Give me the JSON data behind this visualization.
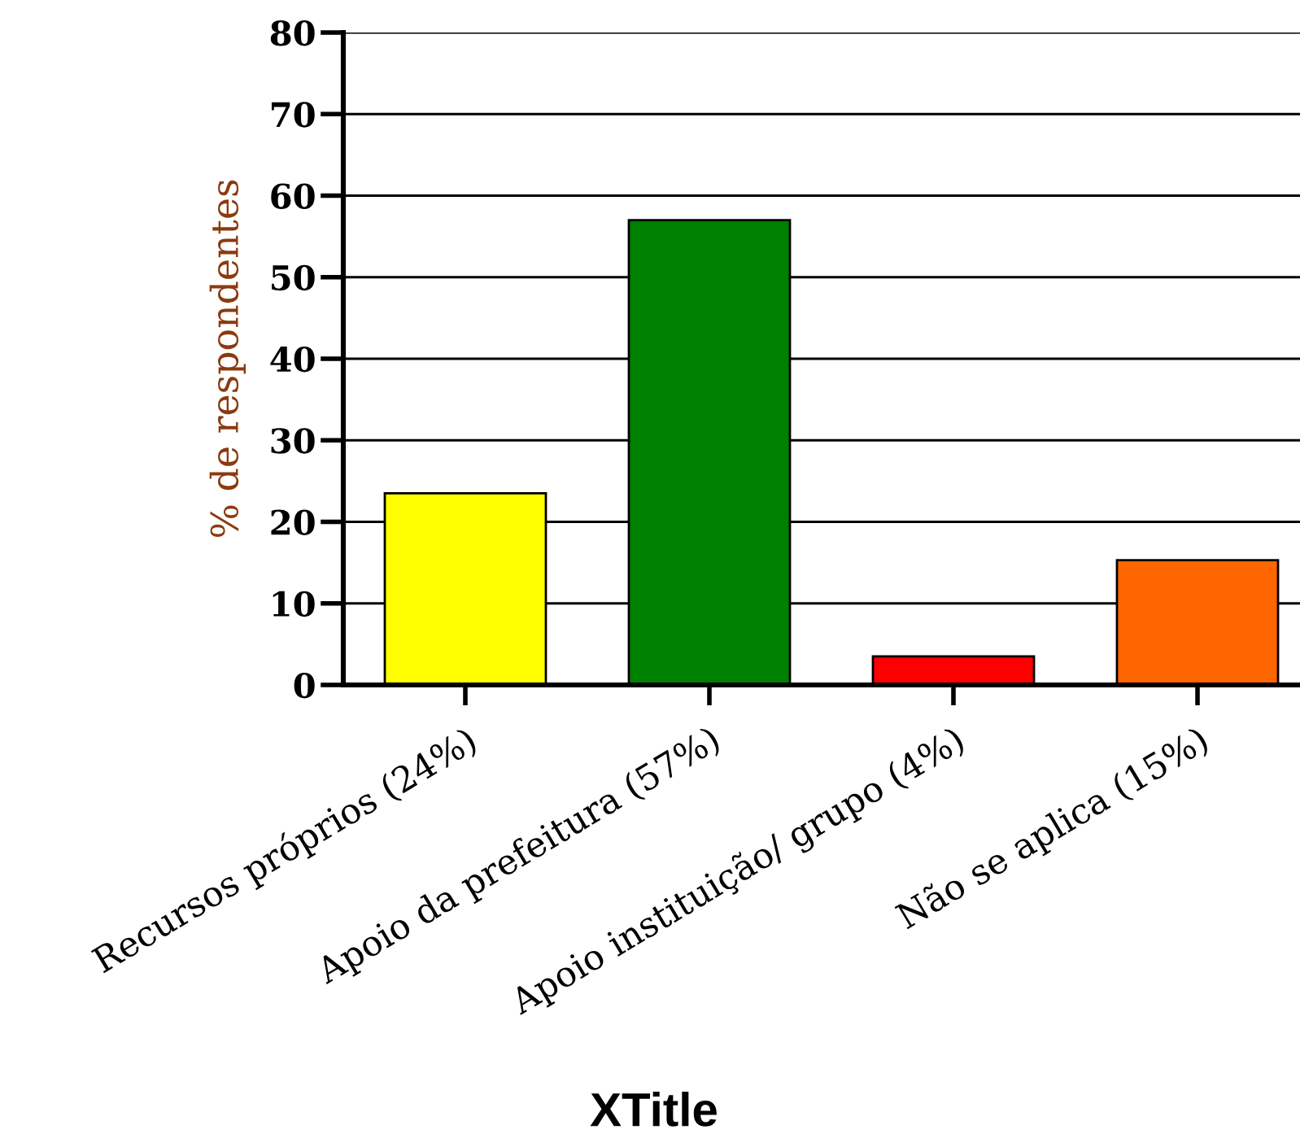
{
  "chart_data": {
    "type": "bar",
    "xlabel": "XTitle",
    "ylabel": "% de respondentes",
    "categories": [
      "Recursos próprios (24%)",
      "Apoio da prefeitura (57%)",
      "Apoio instituição/ grupo (4%)",
      "Não se aplica (15%)"
    ],
    "values": [
      23.5,
      57,
      3.5,
      15.3
    ],
    "colors": [
      "#ffff00",
      "#008000",
      "#ff0000",
      "#ff6600"
    ],
    "ylim": [
      0,
      80
    ],
    "yticks": [
      0,
      10,
      20,
      30,
      40,
      50,
      60,
      70,
      80
    ],
    "grid": "y",
    "legend": false
  }
}
